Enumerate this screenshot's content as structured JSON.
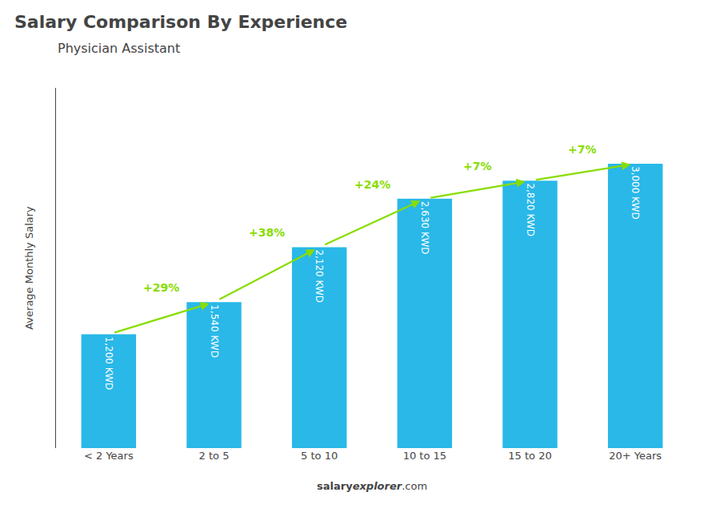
{
  "chart_data": {
    "type": "bar",
    "title": "Salary Comparison By Experience",
    "subtitle": "Physician Assistant",
    "ylabel": "Average Monthly Salary",
    "categories": [
      "< 2 Years",
      "2 to 5",
      "5 to 10",
      "10 to 15",
      "15 to 20",
      "20+ Years"
    ],
    "values": [
      1200,
      1540,
      2120,
      2630,
      2820,
      3000
    ],
    "value_labels": [
      "1,200 KWD",
      "1,540 KWD",
      "2,120 KWD",
      "2,630 KWD",
      "2,820 KWD",
      "3,000 KWD"
    ],
    "data_labels": true,
    "color": "#29B8E8",
    "ylim": [
      0,
      3800
    ],
    "tick_labels": "x",
    "grid": false,
    "annotations": [
      {
        "text": "+29%",
        "from": "< 2 Years",
        "to": "2 to 5",
        "color": "#88DD00"
      },
      {
        "text": "+38%",
        "from": "2 to 5",
        "to": "5 to 10",
        "color": "#88DD00"
      },
      {
        "text": "+24%",
        "from": "5 to 10",
        "to": "10 to 15",
        "color": "#88DD00"
      },
      {
        "text": "+7%",
        "from": "10 to 15",
        "to": "15 to 20",
        "color": "#88DD00"
      },
      {
        "text": "+7%",
        "from": "15 to 20",
        "to": "20+ Years",
        "color": "#88DD00"
      }
    ],
    "watermark": [
      "salary",
      "explorer",
      ".com"
    ]
  }
}
